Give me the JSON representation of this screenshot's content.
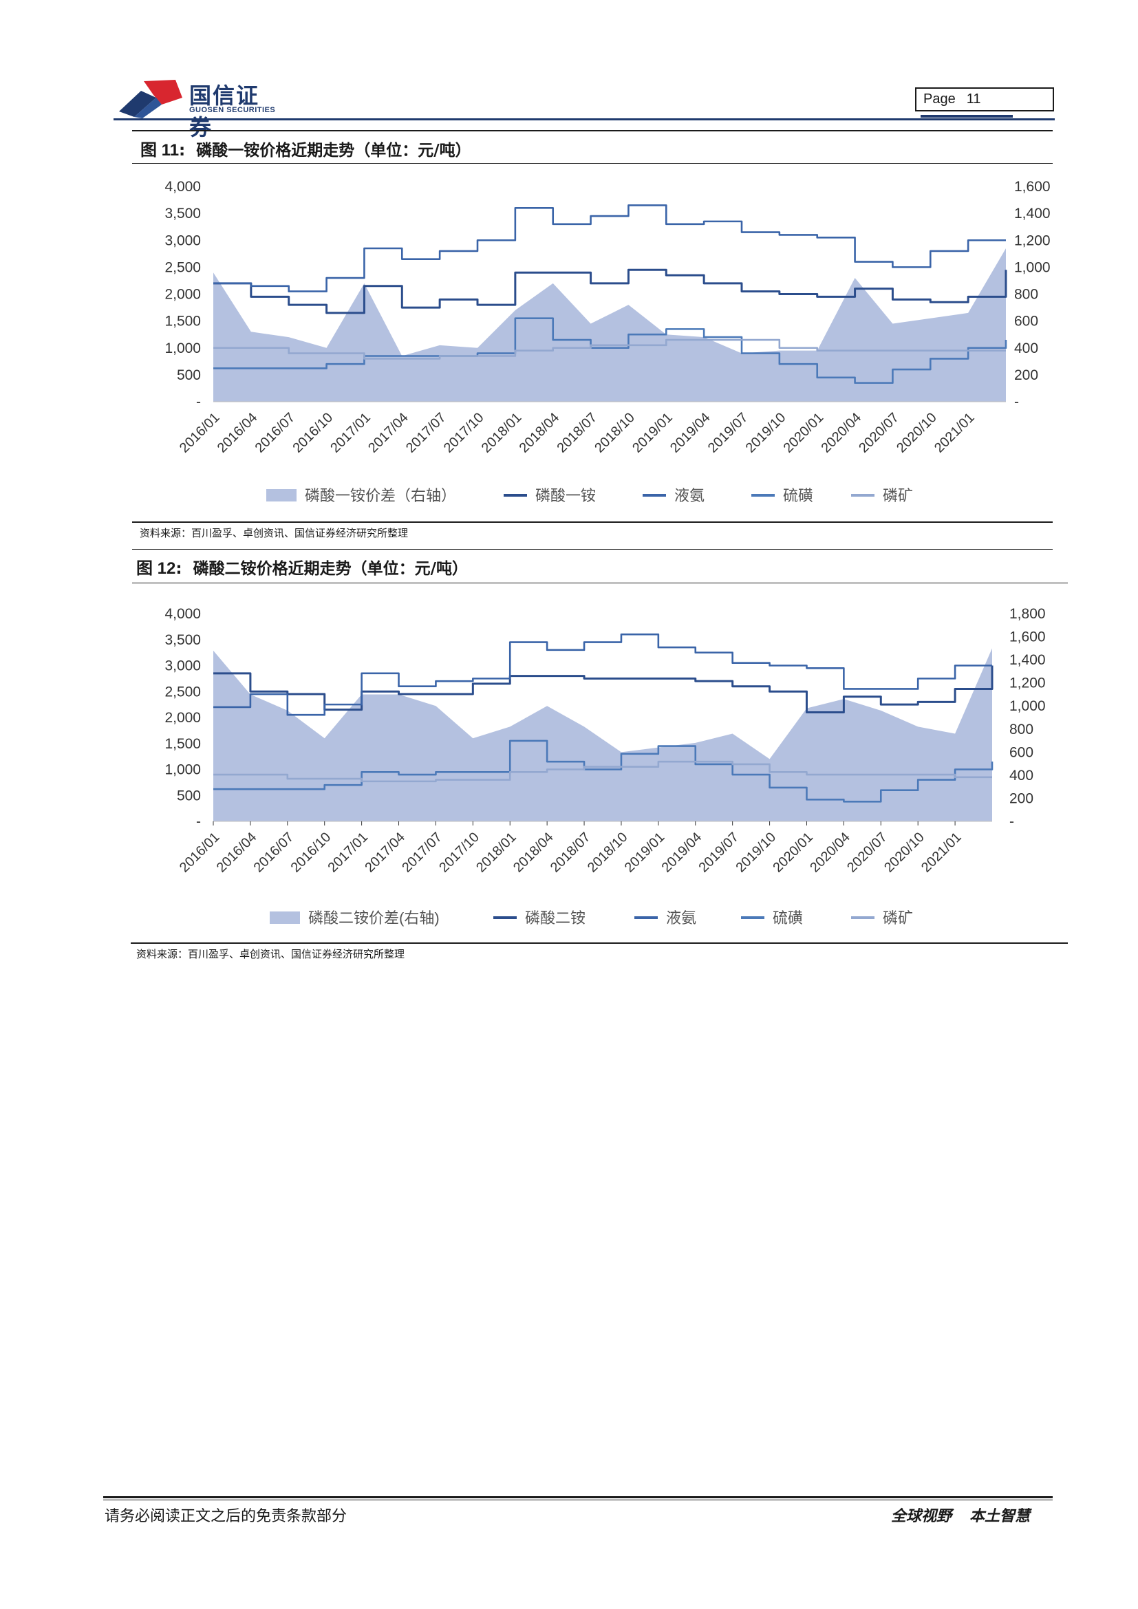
{
  "header": {
    "brand_cn": "国信证券",
    "brand_en": "GUOSEN SECURITIES",
    "page_label": "Page",
    "page_number": "11",
    "colors": {
      "navy": "#1f3a6e",
      "red": "#d8262f"
    }
  },
  "figures": [
    {
      "label": "图 11",
      "title": "磷酸一铵价格近期走势（单位：元/吨）",
      "source": "资料来源：百川盈孚、卓创资讯、国信证券经济研究所整理"
    },
    {
      "label": "图 12",
      "title": "磷酸二铵价格近期走势（单位：元/吨）",
      "source": "资料来源：百川盈孚、卓创资讯、国信证券经济研究所整理"
    }
  ],
  "chart_data": [
    {
      "type": "line",
      "x_ticks": [
        "2016/01",
        "2016/04",
        "2016/07",
        "2016/10",
        "2017/01",
        "2017/04",
        "2017/07",
        "2017/10",
        "2018/01",
        "2018/04",
        "2018/07",
        "2018/10",
        "2019/01",
        "2019/04",
        "2019/07",
        "2019/10",
        "2020/01",
        "2020/04",
        "2020/07",
        "2020/10",
        "2021/01"
      ],
      "x": [
        "2016/01",
        "2016/04",
        "2016/07",
        "2016/10",
        "2017/01",
        "2017/04",
        "2017/07",
        "2017/10",
        "2018/01",
        "2018/04",
        "2018/07",
        "2018/10",
        "2019/01",
        "2019/04",
        "2019/07",
        "2019/10",
        "2020/01",
        "2020/04",
        "2020/07",
        "2020/10",
        "2021/01",
        "2021/04"
      ],
      "y_left": {
        "ticks": [
          "4,000",
          "3,500",
          "3,000",
          "2,500",
          "2,000",
          "1,500",
          "1,000",
          "500",
          "-"
        ],
        "range": [
          0,
          4000
        ]
      },
      "y_right": {
        "ticks": [
          "1,600",
          "1,400",
          "1,200",
          "1,000",
          "800",
          "600",
          "400",
          "200",
          "-"
        ],
        "range": [
          0,
          1600
        ]
      },
      "series": [
        {
          "name": "磷酸一铵价差（右轴）",
          "axis": "right",
          "kind": "area",
          "color": "#b4c1e0",
          "values": [
            960,
            520,
            480,
            400,
            880,
            340,
            420,
            400,
            680,
            880,
            580,
            720,
            500,
            480,
            360,
            380,
            380,
            920,
            580,
            620,
            660,
            1140
          ]
        },
        {
          "name": "磷酸一铵",
          "axis": "left",
          "kind": "line",
          "color": "#2b4d8c",
          "values": [
            2200,
            1950,
            1800,
            1650,
            2150,
            1750,
            1900,
            1800,
            2400,
            2400,
            2200,
            2450,
            2350,
            2200,
            2050,
            2000,
            1950,
            2100,
            1900,
            1850,
            1950,
            2450
          ]
        },
        {
          "name": "液氨",
          "axis": "left",
          "kind": "line",
          "color": "#3a64a8",
          "values": [
            2200,
            2150,
            2050,
            2300,
            2850,
            2650,
            2800,
            3000,
            3600,
            3300,
            3450,
            3650,
            3300,
            3350,
            3150,
            3100,
            3050,
            2600,
            2500,
            2800,
            3000,
            3000
          ]
        },
        {
          "name": "硫磺",
          "axis": "left",
          "kind": "line",
          "color": "#4b79b8",
          "values": [
            620,
            620,
            620,
            700,
            850,
            850,
            850,
            900,
            1550,
            1150,
            1000,
            1250,
            1350,
            1200,
            900,
            700,
            450,
            350,
            600,
            800,
            1000,
            1150
          ]
        },
        {
          "name": "磷矿",
          "axis": "left",
          "kind": "line",
          "color": "#93a8d0",
          "values": [
            1000,
            1000,
            900,
            900,
            800,
            800,
            850,
            850,
            950,
            1000,
            1050,
            1050,
            1150,
            1150,
            1150,
            1000,
            950,
            950,
            950,
            950,
            950,
            950
          ]
        }
      ]
    },
    {
      "type": "line",
      "x_ticks": [
        "2016/01",
        "2016/04",
        "2016/07",
        "2016/10",
        "2017/01",
        "2017/04",
        "2017/07",
        "2017/10",
        "2018/01",
        "2018/04",
        "2018/07",
        "2018/10",
        "2019/01",
        "2019/04",
        "2019/07",
        "2019/10",
        "2020/01",
        "2020/04",
        "2020/07",
        "2020/10",
        "2021/01"
      ],
      "x": [
        "2016/01",
        "2016/04",
        "2016/07",
        "2016/10",
        "2017/01",
        "2017/04",
        "2017/07",
        "2017/10",
        "2018/01",
        "2018/04",
        "2018/07",
        "2018/10",
        "2019/01",
        "2019/04",
        "2019/07",
        "2019/10",
        "2020/01",
        "2020/04",
        "2020/07",
        "2020/10",
        "2021/01",
        "2021/04"
      ],
      "y_left": {
        "ticks": [
          "4,000",
          "3,500",
          "3,000",
          "2,500",
          "2,000",
          "1,500",
          "1,000",
          "500",
          "-"
        ],
        "range": [
          0,
          4000
        ]
      },
      "y_right": {
        "ticks": [
          "1,800",
          "1,600",
          "1,400",
          "1,200",
          "1,000",
          "800",
          "600",
          "400",
          "200",
          "-"
        ],
        "range": [
          0,
          1800
        ]
      },
      "series": [
        {
          "name": "磷酸二铵价差(右轴)",
          "axis": "right",
          "kind": "area",
          "color": "#b4c1e0",
          "values": [
            1480,
            1100,
            960,
            720,
            1100,
            1100,
            1000,
            720,
            820,
            1000,
            820,
            600,
            640,
            680,
            760,
            540,
            980,
            1060,
            960,
            820,
            760,
            1500
          ]
        },
        {
          "name": "磷酸二铵",
          "axis": "left",
          "kind": "line",
          "color": "#2b4d8c",
          "values": [
            2850,
            2500,
            2450,
            2150,
            2500,
            2450,
            2450,
            2650,
            2800,
            2800,
            2750,
            2750,
            2750,
            2700,
            2600,
            2500,
            2100,
            2400,
            2250,
            2300,
            2550,
            3000
          ]
        },
        {
          "name": "液氨",
          "axis": "left",
          "kind": "line",
          "color": "#3a64a8",
          "values": [
            2200,
            2450,
            2050,
            2250,
            2850,
            2600,
            2700,
            2750,
            3450,
            3300,
            3450,
            3600,
            3350,
            3250,
            3050,
            3000,
            2950,
            2550,
            2550,
            2750,
            3000,
            3000
          ]
        },
        {
          "name": "硫磺",
          "axis": "left",
          "kind": "line",
          "color": "#4b79b8",
          "values": [
            620,
            620,
            620,
            700,
            950,
            900,
            950,
            950,
            1550,
            1150,
            1000,
            1300,
            1450,
            1100,
            900,
            650,
            420,
            380,
            600,
            800,
            1000,
            1150
          ]
        },
        {
          "name": "磷矿",
          "axis": "left",
          "kind": "line",
          "color": "#93a8d0",
          "values": [
            900,
            900,
            820,
            820,
            770,
            770,
            800,
            800,
            950,
            1000,
            1050,
            1050,
            1150,
            1150,
            1100,
            950,
            900,
            900,
            900,
            900,
            850,
            850
          ]
        }
      ]
    }
  ],
  "footer": {
    "disclaimer": "请务必阅读正文之后的免责条款部分",
    "slogan_1": "全球视野",
    "slogan_2": "本土智慧"
  }
}
